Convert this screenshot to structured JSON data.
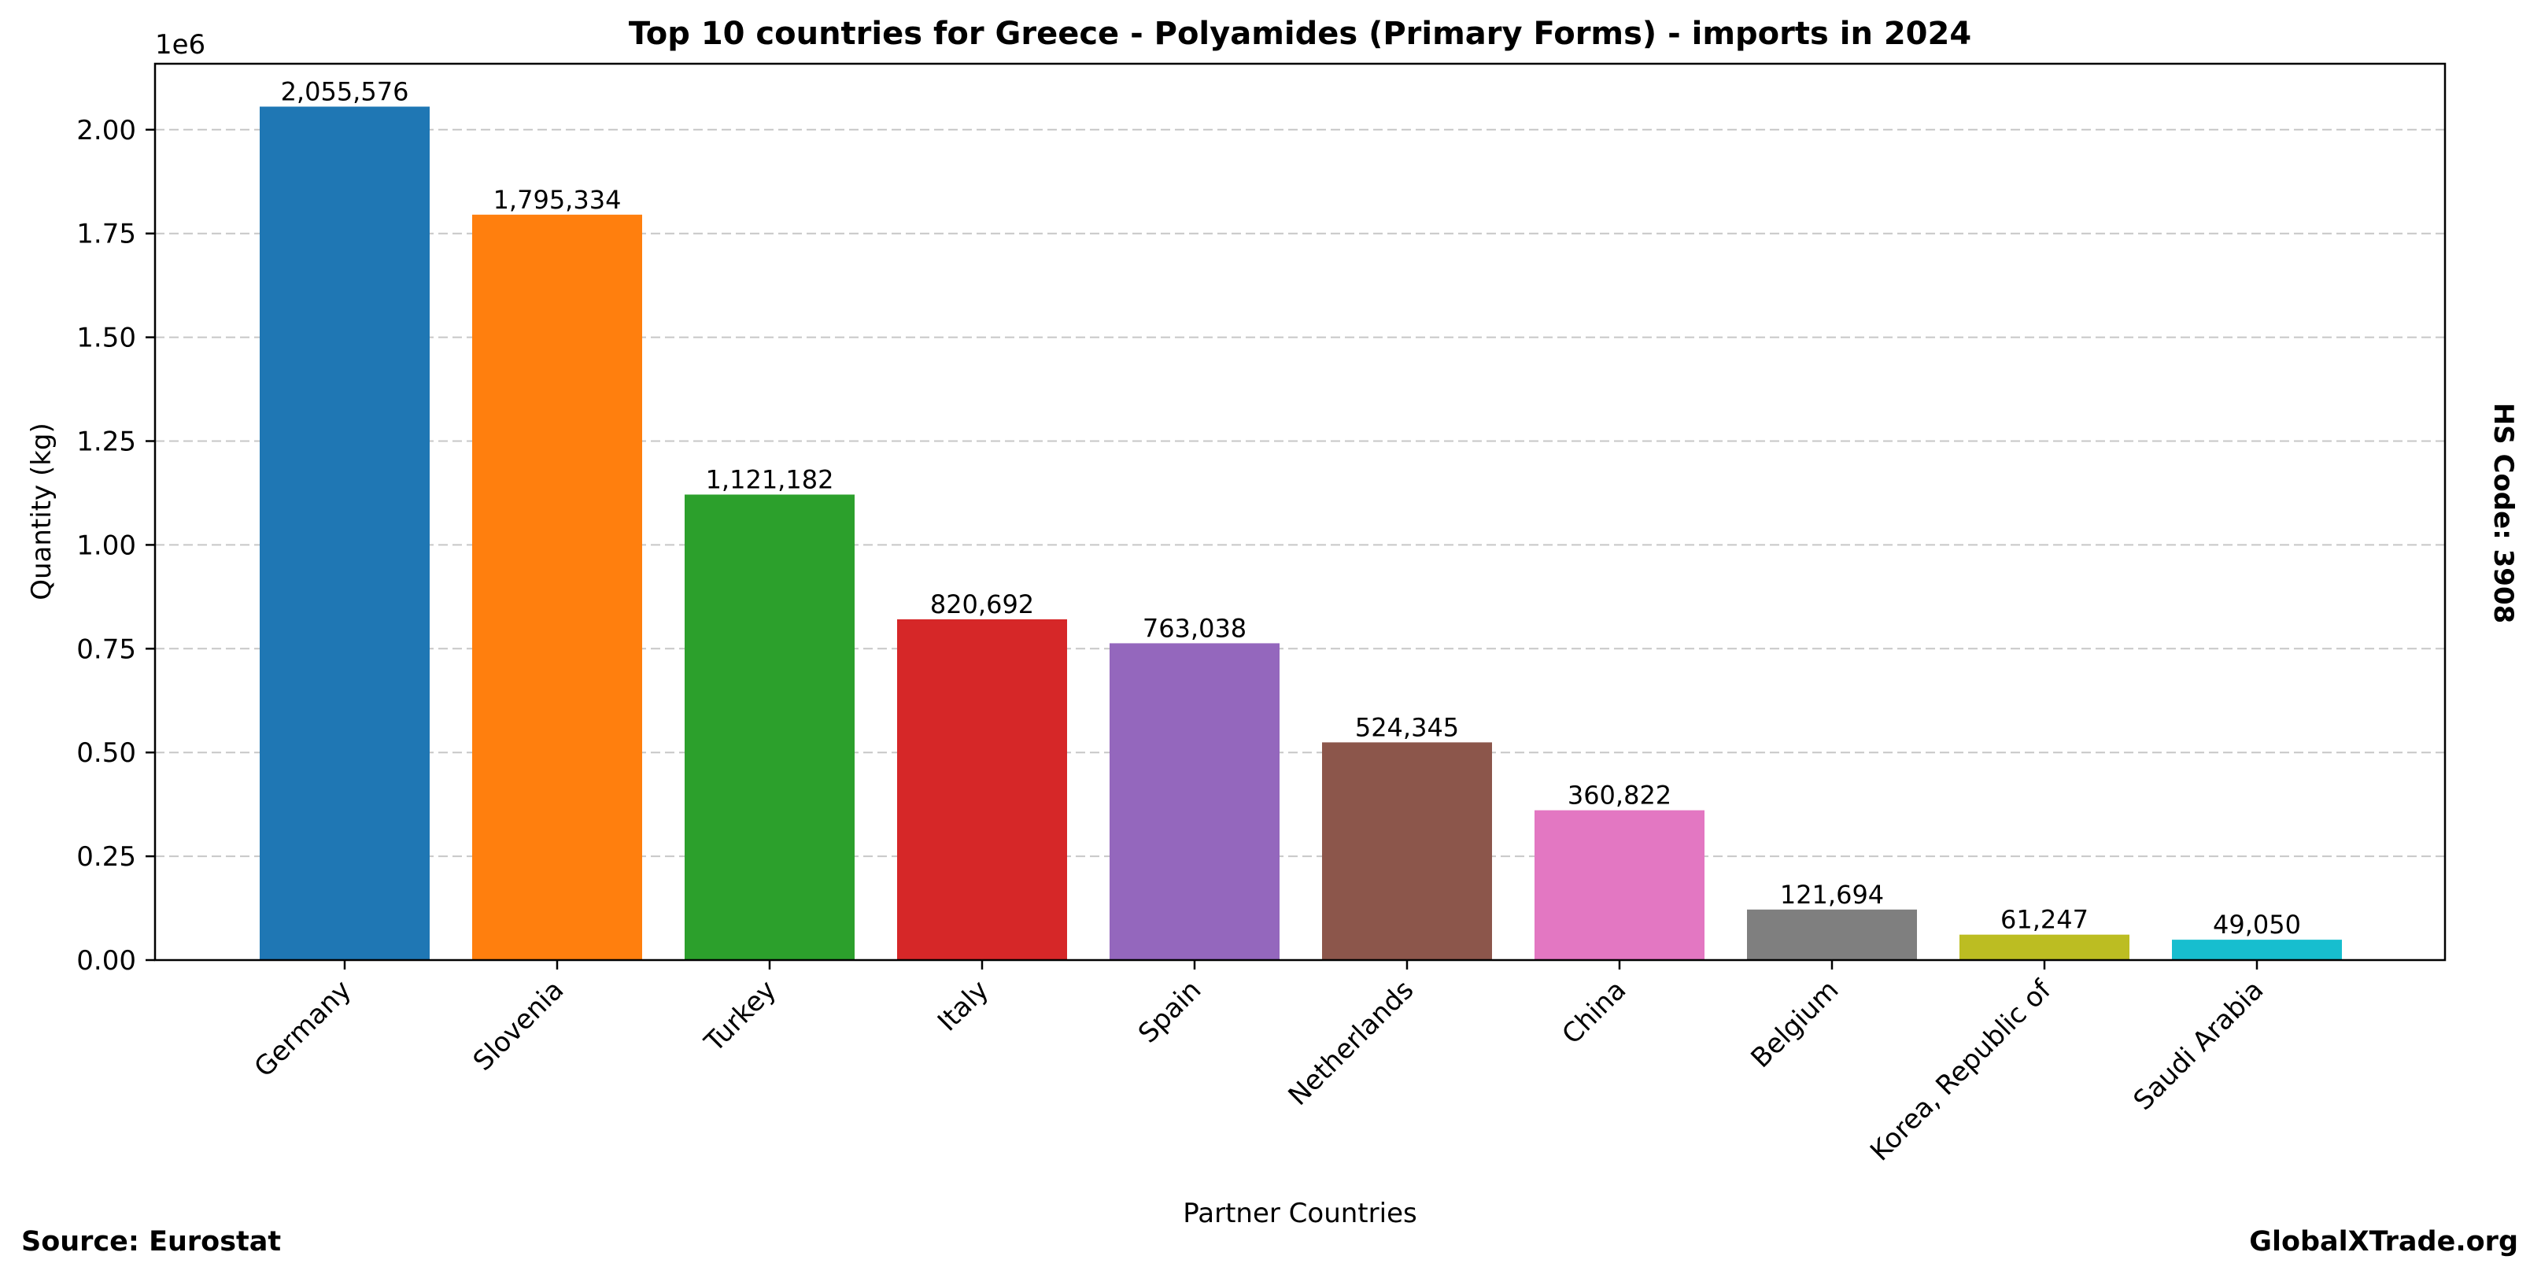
{
  "chart_data": {
    "type": "bar",
    "title": "Top 10 countries for Greece - Polyamides (Primary Forms) - imports in 2024",
    "xlabel": "Partner Countries",
    "ylabel": "Quantity (kg)",
    "y_scale_label": "1e6",
    "ylim": [
      0,
      2158855
    ],
    "y_ticks": [
      0,
      250000,
      500000,
      750000,
      1000000,
      1250000,
      1500000,
      1750000,
      2000000
    ],
    "y_tick_labels": [
      "0.00",
      "0.25",
      "0.50",
      "0.75",
      "1.00",
      "1.25",
      "1.50",
      "1.75",
      "2.00"
    ],
    "grid": "horizontal-dashed",
    "categories": [
      "Germany",
      "Slovenia",
      "Turkey",
      "Italy",
      "Spain",
      "Netherlands",
      "China",
      "Belgium",
      "Korea, Republic of",
      "Saudi Arabia"
    ],
    "values": [
      2055576,
      1795334,
      1121182,
      820692,
      763038,
      524345,
      360822,
      121694,
      61247,
      49050
    ],
    "value_labels": [
      "2,055,576",
      "1,795,334",
      "1,121,182",
      "820,692",
      "763,038",
      "524,345",
      "360,822",
      "121,694",
      "61,247",
      "49,050"
    ],
    "colors": [
      "#1f77b4",
      "#ff7f0e",
      "#2ca02c",
      "#d62728",
      "#9467bd",
      "#8c564b",
      "#e377c2",
      "#7f7f7f",
      "#bcbd22",
      "#17becf"
    ],
    "side_label": "HS Code: 3908",
    "source": "Source: Eurostat",
    "brand": "GlobalXTrade.org"
  }
}
